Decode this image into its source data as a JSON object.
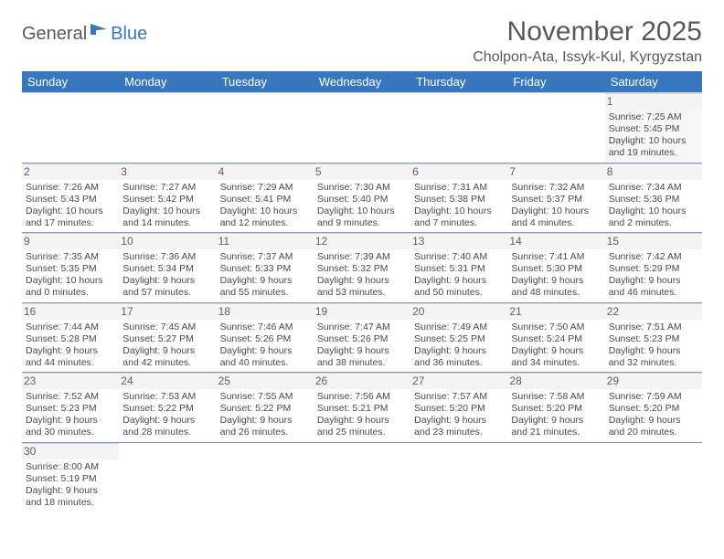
{
  "logo": {
    "part1": "General",
    "part2": "Blue",
    "icon_color": "#3777bc"
  },
  "title": "November 2025",
  "location": "Cholpon-Ata, Issyk-Kul, Kyrgyzstan",
  "colors": {
    "header_bg": "#3777bc",
    "header_text": "#ffffff",
    "row_divider": "#7f9cc0",
    "daynum_bg": "#f4f4f4",
    "text": "#4a4a4a",
    "title_text": "#595959"
  },
  "fonts": {
    "title_size_pt": 22,
    "location_size_pt": 12,
    "weekday_size_pt": 10,
    "daynum_size_pt": 9,
    "body_size_pt": 8
  },
  "weekdays": [
    "Sunday",
    "Monday",
    "Tuesday",
    "Wednesday",
    "Thursday",
    "Friday",
    "Saturday"
  ],
  "weeks": [
    [
      null,
      null,
      null,
      null,
      null,
      null,
      {
        "n": "1",
        "sunrise": "7:25 AM",
        "sunset": "5:45 PM",
        "day_h": "10",
        "day_m": "19"
      }
    ],
    [
      {
        "n": "2",
        "sunrise": "7:26 AM",
        "sunset": "5:43 PM",
        "day_h": "10",
        "day_m": "17"
      },
      {
        "n": "3",
        "sunrise": "7:27 AM",
        "sunset": "5:42 PM",
        "day_h": "10",
        "day_m": "14"
      },
      {
        "n": "4",
        "sunrise": "7:29 AM",
        "sunset": "5:41 PM",
        "day_h": "10",
        "day_m": "12"
      },
      {
        "n": "5",
        "sunrise": "7:30 AM",
        "sunset": "5:40 PM",
        "day_h": "10",
        "day_m": "9"
      },
      {
        "n": "6",
        "sunrise": "7:31 AM",
        "sunset": "5:38 PM",
        "day_h": "10",
        "day_m": "7"
      },
      {
        "n": "7",
        "sunrise": "7:32 AM",
        "sunset": "5:37 PM",
        "day_h": "10",
        "day_m": "4"
      },
      {
        "n": "8",
        "sunrise": "7:34 AM",
        "sunset": "5:36 PM",
        "day_h": "10",
        "day_m": "2"
      }
    ],
    [
      {
        "n": "9",
        "sunrise": "7:35 AM",
        "sunset": "5:35 PM",
        "day_h": "10",
        "day_m": "0"
      },
      {
        "n": "10",
        "sunrise": "7:36 AM",
        "sunset": "5:34 PM",
        "day_h": "9",
        "day_m": "57"
      },
      {
        "n": "11",
        "sunrise": "7:37 AM",
        "sunset": "5:33 PM",
        "day_h": "9",
        "day_m": "55"
      },
      {
        "n": "12",
        "sunrise": "7:39 AM",
        "sunset": "5:32 PM",
        "day_h": "9",
        "day_m": "53"
      },
      {
        "n": "13",
        "sunrise": "7:40 AM",
        "sunset": "5:31 PM",
        "day_h": "9",
        "day_m": "50"
      },
      {
        "n": "14",
        "sunrise": "7:41 AM",
        "sunset": "5:30 PM",
        "day_h": "9",
        "day_m": "48"
      },
      {
        "n": "15",
        "sunrise": "7:42 AM",
        "sunset": "5:29 PM",
        "day_h": "9",
        "day_m": "46"
      }
    ],
    [
      {
        "n": "16",
        "sunrise": "7:44 AM",
        "sunset": "5:28 PM",
        "day_h": "9",
        "day_m": "44"
      },
      {
        "n": "17",
        "sunrise": "7:45 AM",
        "sunset": "5:27 PM",
        "day_h": "9",
        "day_m": "42"
      },
      {
        "n": "18",
        "sunrise": "7:46 AM",
        "sunset": "5:26 PM",
        "day_h": "9",
        "day_m": "40"
      },
      {
        "n": "19",
        "sunrise": "7:47 AM",
        "sunset": "5:26 PM",
        "day_h": "9",
        "day_m": "38"
      },
      {
        "n": "20",
        "sunrise": "7:49 AM",
        "sunset": "5:25 PM",
        "day_h": "9",
        "day_m": "36"
      },
      {
        "n": "21",
        "sunrise": "7:50 AM",
        "sunset": "5:24 PM",
        "day_h": "9",
        "day_m": "34"
      },
      {
        "n": "22",
        "sunrise": "7:51 AM",
        "sunset": "5:23 PM",
        "day_h": "9",
        "day_m": "32"
      }
    ],
    [
      {
        "n": "23",
        "sunrise": "7:52 AM",
        "sunset": "5:23 PM",
        "day_h": "9",
        "day_m": "30"
      },
      {
        "n": "24",
        "sunrise": "7:53 AM",
        "sunset": "5:22 PM",
        "day_h": "9",
        "day_m": "28"
      },
      {
        "n": "25",
        "sunrise": "7:55 AM",
        "sunset": "5:22 PM",
        "day_h": "9",
        "day_m": "26"
      },
      {
        "n": "26",
        "sunrise": "7:56 AM",
        "sunset": "5:21 PM",
        "day_h": "9",
        "day_m": "25"
      },
      {
        "n": "27",
        "sunrise": "7:57 AM",
        "sunset": "5:20 PM",
        "day_h": "9",
        "day_m": "23"
      },
      {
        "n": "28",
        "sunrise": "7:58 AM",
        "sunset": "5:20 PM",
        "day_h": "9",
        "day_m": "21"
      },
      {
        "n": "29",
        "sunrise": "7:59 AM",
        "sunset": "5:20 PM",
        "day_h": "9",
        "day_m": "20"
      }
    ],
    [
      {
        "n": "30",
        "sunrise": "8:00 AM",
        "sunset": "5:19 PM",
        "day_h": "9",
        "day_m": "18"
      },
      null,
      null,
      null,
      null,
      null,
      null
    ]
  ],
  "labels": {
    "sunrise": "Sunrise:",
    "sunset": "Sunset:",
    "daylight_prefix": "Daylight:",
    "hours_word": "hours",
    "and_word": "and",
    "minutes_suffix": "minutes."
  }
}
